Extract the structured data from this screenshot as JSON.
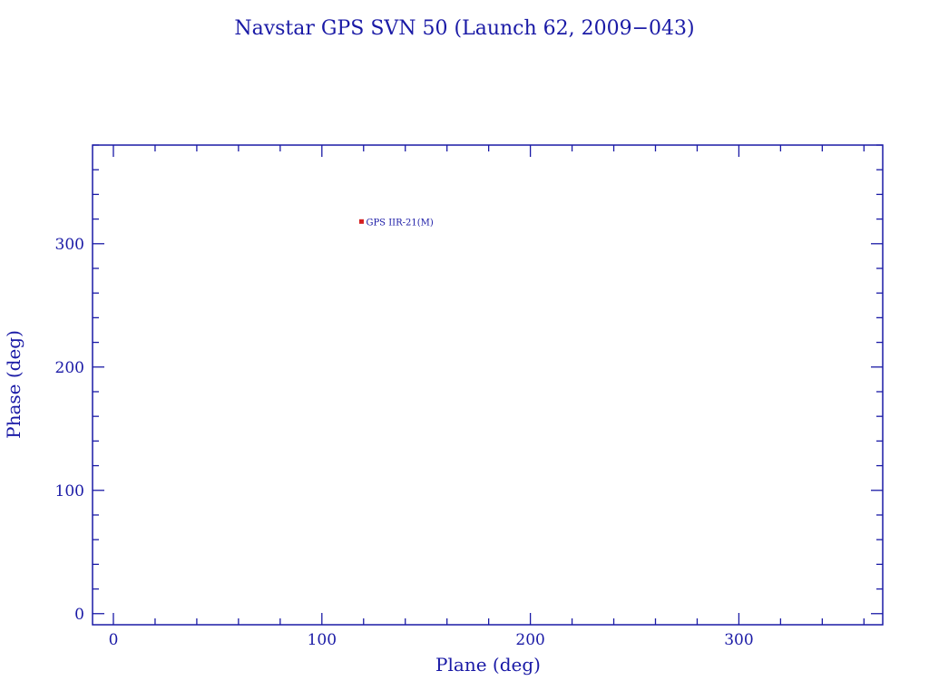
{
  "chart_data": {
    "type": "scatter",
    "title": "Navstar GPS SVN 50 (Launch 62, 2009−043)",
    "xlabel": "Plane (deg)",
    "ylabel": "Phase (deg)",
    "xlim": [
      -10,
      369
    ],
    "ylim": [
      -9,
      380
    ],
    "xticks": [
      0,
      100,
      200,
      300
    ],
    "yticks": [
      0,
      100,
      200,
      300
    ],
    "x_minor_step": 20,
    "y_minor_step": 20,
    "grid": false,
    "points": [
      {
        "x": 119,
        "y": 318,
        "label": "GPS IIR-21(M)"
      }
    ],
    "colors": {
      "axis": "#1a1aa6",
      "marker": "#d42020"
    }
  }
}
